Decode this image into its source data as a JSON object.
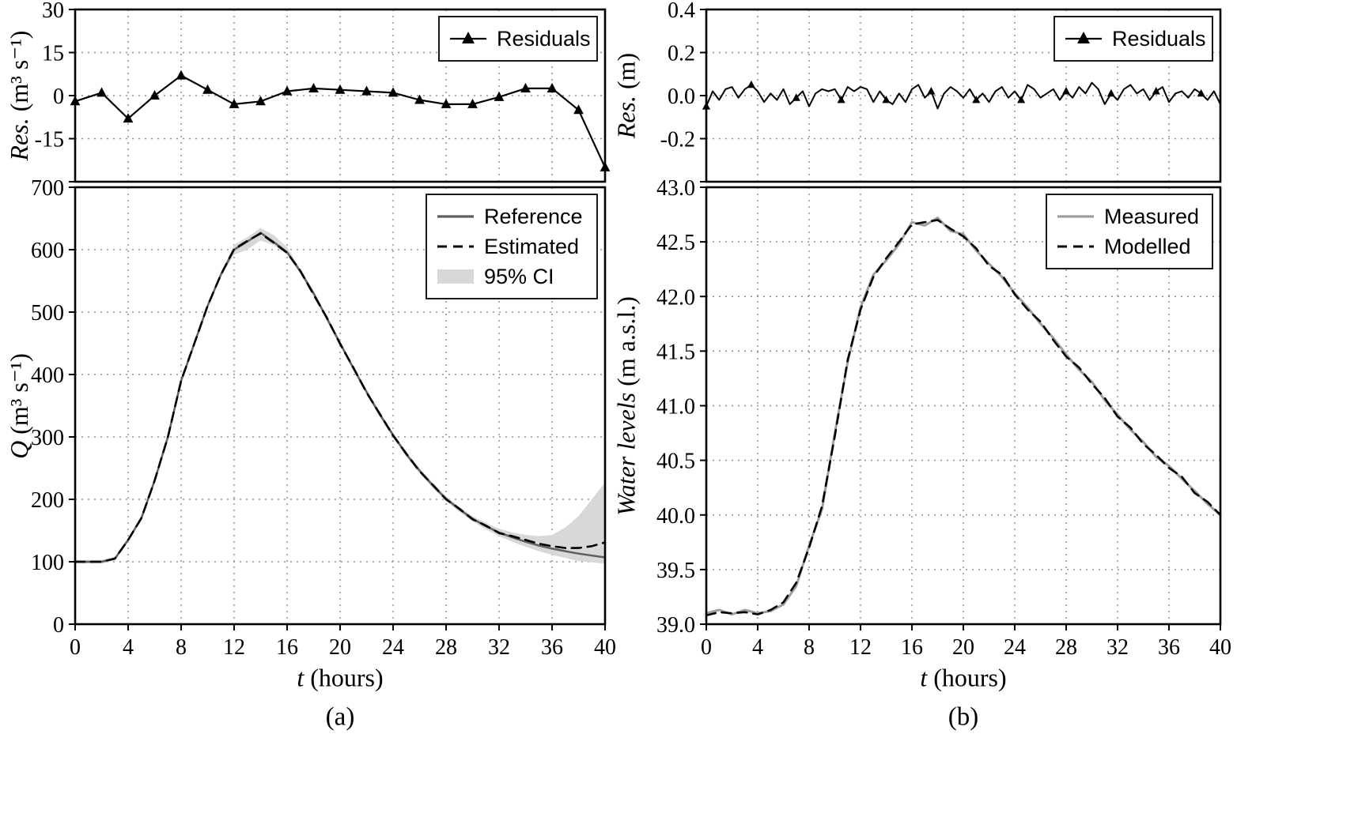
{
  "figure": {
    "caption_a": "(a)",
    "caption_b": "(b)",
    "xlabel_italic": "t",
    "xlabel_units": " (hours)"
  },
  "colors": {
    "axis": "#000000",
    "grid": "#8f8f8f",
    "reference": "#5f5f5f",
    "estimated": "#000000",
    "ci_band": "#d8d8d8",
    "measured": "#9e9e9e",
    "modelled": "#000000",
    "residual": "#000000"
  },
  "chart_data": [
    {
      "id": "a-top",
      "type": "line",
      "ylabel_italic": "Res.",
      "ylabel_units": " (m³ s⁻¹)",
      "xlim": [
        0,
        40
      ],
      "ylim": [
        -30,
        30
      ],
      "grid": true,
      "xtick_values": [
        0,
        4,
        8,
        12,
        16,
        20,
        24,
        28,
        32,
        36,
        40
      ],
      "xtick_labels": [
        "",
        "",
        "",
        "",
        "",
        "",
        "",
        "",
        "",
        "",
        ""
      ],
      "ytick_values": [
        -30,
        -15,
        0,
        15,
        30
      ],
      "ytick_labels": [
        "",
        "-15",
        "0",
        "15",
        "30"
      ],
      "legend_position": "top-right",
      "legend": [
        {
          "label": "Residuals",
          "sample": "triangle-line",
          "color": "#000000"
        }
      ],
      "series": [
        {
          "name": "Residuals",
          "color": "#000000",
          "width": 2.2,
          "dash": false,
          "marker": "triangle",
          "marker_every": 1,
          "marker_size": 7,
          "x": [
            0,
            2,
            4,
            6,
            8,
            10,
            12,
            14,
            16,
            18,
            20,
            22,
            24,
            26,
            28,
            30,
            32,
            34,
            36,
            38,
            40
          ],
          "y": [
            -2,
            1,
            -8,
            0,
            7,
            2,
            -3,
            -2,
            1.5,
            2.5,
            2,
            1.5,
            1,
            -1.5,
            -3,
            -3,
            -0.5,
            2.5,
            2.5,
            -5,
            -25
          ]
        }
      ]
    },
    {
      "id": "a-bottom",
      "type": "line",
      "ylabel_italic": "Q",
      "ylabel_units": " (m³ s⁻¹)",
      "xlim": [
        0,
        40
      ],
      "ylim": [
        0,
        700
      ],
      "grid": true,
      "xtick_values": [
        0,
        4,
        8,
        12,
        16,
        20,
        24,
        28,
        32,
        36,
        40
      ],
      "xtick_labels": [
        "0",
        "4",
        "8",
        "12",
        "16",
        "20",
        "24",
        "28",
        "32",
        "36",
        "40"
      ],
      "ytick_values": [
        0,
        100,
        200,
        300,
        400,
        500,
        600,
        700
      ],
      "ytick_labels": [
        "0",
        "100",
        "200",
        "300",
        "400",
        "500",
        "600",
        "700"
      ],
      "legend_position": "top-right",
      "legend": [
        {
          "label": "Reference",
          "sample": "line",
          "color": "#5f5f5f"
        },
        {
          "label": "Estimated",
          "sample": "dashed",
          "color": "#000000"
        },
        {
          "label": "95% CI",
          "sample": "band",
          "color": "#d8d8d8"
        }
      ],
      "band": {
        "name": "95% CI",
        "color": "#d8d8d8",
        "x": [
          0,
          1,
          2,
          3,
          4,
          5,
          6,
          7,
          8,
          9,
          10,
          11,
          12,
          13,
          14,
          15,
          16,
          17,
          18,
          19,
          20,
          21,
          22,
          23,
          24,
          25,
          26,
          27,
          28,
          29,
          30,
          31,
          32,
          33,
          34,
          35,
          36,
          37,
          38,
          39,
          40
        ],
        "lower": [
          97,
          97,
          97,
          102,
          132,
          167,
          227,
          297,
          387,
          447,
          507,
          557,
          592,
          600,
          615,
          607,
          592,
          561,
          526,
          486,
          446,
          406,
          368,
          332,
          299,
          268,
          242,
          218,
          197,
          180,
          165,
          152,
          141,
          132,
          124,
          117,
          111,
          106,
          101,
          99,
          97
        ],
        "upper": [
          103,
          103,
          103,
          108,
          138,
          173,
          233,
          303,
          393,
          453,
          513,
          563,
          608,
          620,
          635,
          623,
          604,
          569,
          534,
          494,
          454,
          414,
          376,
          340,
          307,
          276,
          250,
          226,
          205,
          188,
          173,
          162,
          153,
          147,
          143,
          141,
          143,
          155,
          173,
          200,
          227
        ]
      },
      "series": [
        {
          "name": "Reference",
          "color": "#5f5f5f",
          "width": 2.5,
          "dash": false,
          "marker": null,
          "x": [
            0,
            1,
            2,
            3,
            4,
            5,
            6,
            7,
            8,
            9,
            10,
            11,
            12,
            13,
            14,
            15,
            16,
            17,
            18,
            19,
            20,
            21,
            22,
            23,
            24,
            25,
            26,
            27,
            28,
            29,
            30,
            31,
            32,
            33,
            34,
            35,
            36,
            37,
            38,
            39,
            40
          ],
          "y": [
            100,
            100,
            100,
            105,
            135,
            170,
            230,
            300,
            390,
            450,
            510,
            560,
            600,
            613,
            627,
            612,
            596,
            565,
            530,
            490,
            450,
            410,
            372,
            336,
            303,
            272,
            246,
            222,
            201,
            184,
            169,
            157,
            147,
            139,
            132,
            126,
            121,
            117,
            113,
            110,
            107
          ]
        },
        {
          "name": "Estimated",
          "color": "#000000",
          "width": 2.6,
          "dash": true,
          "marker": null,
          "x": [
            0,
            1,
            2,
            3,
            4,
            5,
            6,
            7,
            8,
            9,
            10,
            11,
            12,
            13,
            14,
            15,
            16,
            17,
            18,
            19,
            20,
            21,
            22,
            23,
            24,
            25,
            26,
            27,
            28,
            29,
            30,
            31,
            32,
            33,
            34,
            35,
            36,
            37,
            38,
            39,
            40
          ],
          "y": [
            100,
            100,
            100,
            105,
            135,
            170,
            230,
            300,
            390,
            450,
            510,
            560,
            601,
            614,
            626,
            611,
            595,
            566,
            528,
            491,
            449,
            411,
            371,
            337,
            302,
            273,
            245,
            223,
            200,
            185,
            168,
            158,
            146,
            141,
            135,
            129,
            125,
            122,
            122,
            125,
            131
          ]
        }
      ]
    },
    {
      "id": "b-top",
      "type": "line",
      "ylabel_italic": "Res.",
      "ylabel_units": " (m)",
      "xlim": [
        0,
        40
      ],
      "ylim": [
        -0.4,
        0.4
      ],
      "grid": true,
      "xtick_values": [
        0,
        4,
        8,
        12,
        16,
        20,
        24,
        28,
        32,
        36,
        40
      ],
      "xtick_labels": [
        "",
        "",
        "",
        "",
        "",
        "",
        "",
        "",
        "",
        "",
        ""
      ],
      "ytick_values": [
        -0.4,
        -0.2,
        0,
        0.2,
        0.4
      ],
      "ytick_labels": [
        "",
        "-0.2",
        "0.0",
        "0.2",
        "0.4"
      ],
      "legend_position": "top-right",
      "legend": [
        {
          "label": "Residuals",
          "sample": "triangle-line",
          "color": "#000000"
        }
      ],
      "series": [
        {
          "name": "Residuals",
          "color": "#000000",
          "width": 2,
          "dash": false,
          "marker": "triangle",
          "marker_every": 7,
          "marker_size": 5.5,
          "x": [
            0,
            0.5,
            1,
            1.5,
            2,
            2.5,
            3,
            3.5,
            4,
            4.5,
            5,
            5.5,
            6,
            6.5,
            7,
            7.5,
            8,
            8.5,
            9,
            9.5,
            10,
            10.5,
            11,
            11.5,
            12,
            12.5,
            13,
            13.5,
            14,
            14.5,
            15,
            15.5,
            16,
            16.5,
            17,
            17.5,
            18,
            18.5,
            19,
            19.5,
            20,
            20.5,
            21,
            21.5,
            22,
            22.5,
            23,
            23.5,
            24,
            24.5,
            25,
            25.5,
            26,
            26.5,
            27,
            27.5,
            28,
            28.5,
            29,
            29.5,
            30,
            30.5,
            31,
            31.5,
            32,
            32.5,
            33,
            33.5,
            34,
            34.5,
            35,
            35.5,
            36,
            36.5,
            37,
            37.5,
            38,
            38.5,
            39,
            39.5,
            40
          ],
          "y": [
            -0.05,
            0.02,
            -0.02,
            0.03,
            0.04,
            -0.01,
            0.03,
            0.05,
            0.02,
            -0.03,
            0.01,
            -0.02,
            0.03,
            -0.04,
            -0.01,
            0.02,
            -0.05,
            0.01,
            0.03,
            0.02,
            0.03,
            -0.02,
            0.04,
            0.02,
            0.04,
            0.03,
            -0.03,
            0.02,
            -0.02,
            -0.04,
            0.01,
            -0.03,
            0.03,
            0.05,
            -0.01,
            0.02,
            -0.06,
            0.01,
            0.04,
            0.02,
            -0.01,
            0.03,
            -0.02,
            0.01,
            -0.03,
            0.02,
            0.04,
            -0.01,
            0.02,
            -0.02,
            0.05,
            0.03,
            -0.01,
            0.01,
            0.03,
            -0.02,
            0.02,
            -0.01,
            0.04,
            0.01,
            0.06,
            0.03,
            -0.04,
            0.01,
            -0.02,
            0.03,
            0.05,
            0.01,
            0.03,
            -0.02,
            0.02,
            0.04,
            -0.03,
            0.01,
            0.02,
            -0.01,
            0.03,
            0.01,
            -0.02,
            0.02,
            -0.04
          ]
        }
      ]
    },
    {
      "id": "b-bottom",
      "type": "line",
      "ylabel_italic": "Water levels",
      "ylabel_units": " (m a.s.l.)",
      "xlim": [
        0,
        40
      ],
      "ylim": [
        39.0,
        43.0
      ],
      "grid": true,
      "xtick_values": [
        0,
        4,
        8,
        12,
        16,
        20,
        24,
        28,
        32,
        36,
        40
      ],
      "xtick_labels": [
        "0",
        "4",
        "8",
        "12",
        "16",
        "20",
        "24",
        "28",
        "32",
        "36",
        "40"
      ],
      "ytick_values": [
        39.0,
        39.5,
        40.0,
        40.5,
        41.0,
        41.5,
        42.0,
        42.5,
        43.0
      ],
      "ytick_labels": [
        "39.0",
        "39.5",
        "40.0",
        "40.5",
        "41.0",
        "41.5",
        "42.0",
        "42.5",
        "43.0"
      ],
      "legend_position": "top-right",
      "legend": [
        {
          "label": "Measured",
          "sample": "line",
          "color": "#9e9e9e"
        },
        {
          "label": "Modelled",
          "sample": "dashed",
          "color": "#000000"
        }
      ],
      "series": [
        {
          "name": "Measured",
          "color": "#9e9e9e",
          "width": 3,
          "dash": false,
          "marker": null,
          "x": [
            0,
            1,
            2,
            3,
            4,
            5,
            6,
            7,
            8,
            9,
            10,
            11,
            12,
            13,
            14,
            15,
            16,
            17,
            18,
            19,
            20,
            21,
            22,
            23,
            24,
            25,
            26,
            27,
            28,
            29,
            30,
            31,
            32,
            33,
            34,
            35,
            36,
            37,
            38,
            39,
            40
          ],
          "y": [
            39.1,
            39.13,
            39.09,
            39.13,
            39.1,
            39.12,
            39.18,
            39.35,
            39.72,
            40.05,
            40.75,
            41.4,
            41.9,
            42.2,
            42.33,
            42.48,
            42.68,
            42.65,
            42.72,
            42.6,
            42.57,
            42.42,
            42.3,
            42.18,
            42.03,
            41.9,
            41.75,
            41.62,
            41.47,
            41.33,
            41.22,
            41.05,
            40.92,
            40.78,
            40.67,
            40.53,
            40.45,
            40.33,
            40.22,
            40.1,
            40.0
          ]
        },
        {
          "name": "Modelled",
          "color": "#000000",
          "width": 2.6,
          "dash": true,
          "marker": null,
          "x": [
            0,
            1,
            2,
            3,
            4,
            5,
            6,
            7,
            8,
            9,
            10,
            11,
            12,
            13,
            14,
            15,
            16,
            17,
            18,
            19,
            20,
            21,
            22,
            23,
            24,
            25,
            26,
            27,
            28,
            29,
            30,
            31,
            32,
            33,
            34,
            35,
            36,
            37,
            38,
            39,
            40
          ],
          "y": [
            39.08,
            39.11,
            39.1,
            39.11,
            39.09,
            39.13,
            39.2,
            39.38,
            39.7,
            40.08,
            40.72,
            41.42,
            41.88,
            42.18,
            42.35,
            42.5,
            42.66,
            42.68,
            42.7,
            42.62,
            42.55,
            42.44,
            42.28,
            42.2,
            42.02,
            41.88,
            41.77,
            41.6,
            41.45,
            41.35,
            41.2,
            41.07,
            40.9,
            40.8,
            40.65,
            40.55,
            40.43,
            40.35,
            40.2,
            40.12,
            40.0
          ]
        }
      ]
    }
  ]
}
